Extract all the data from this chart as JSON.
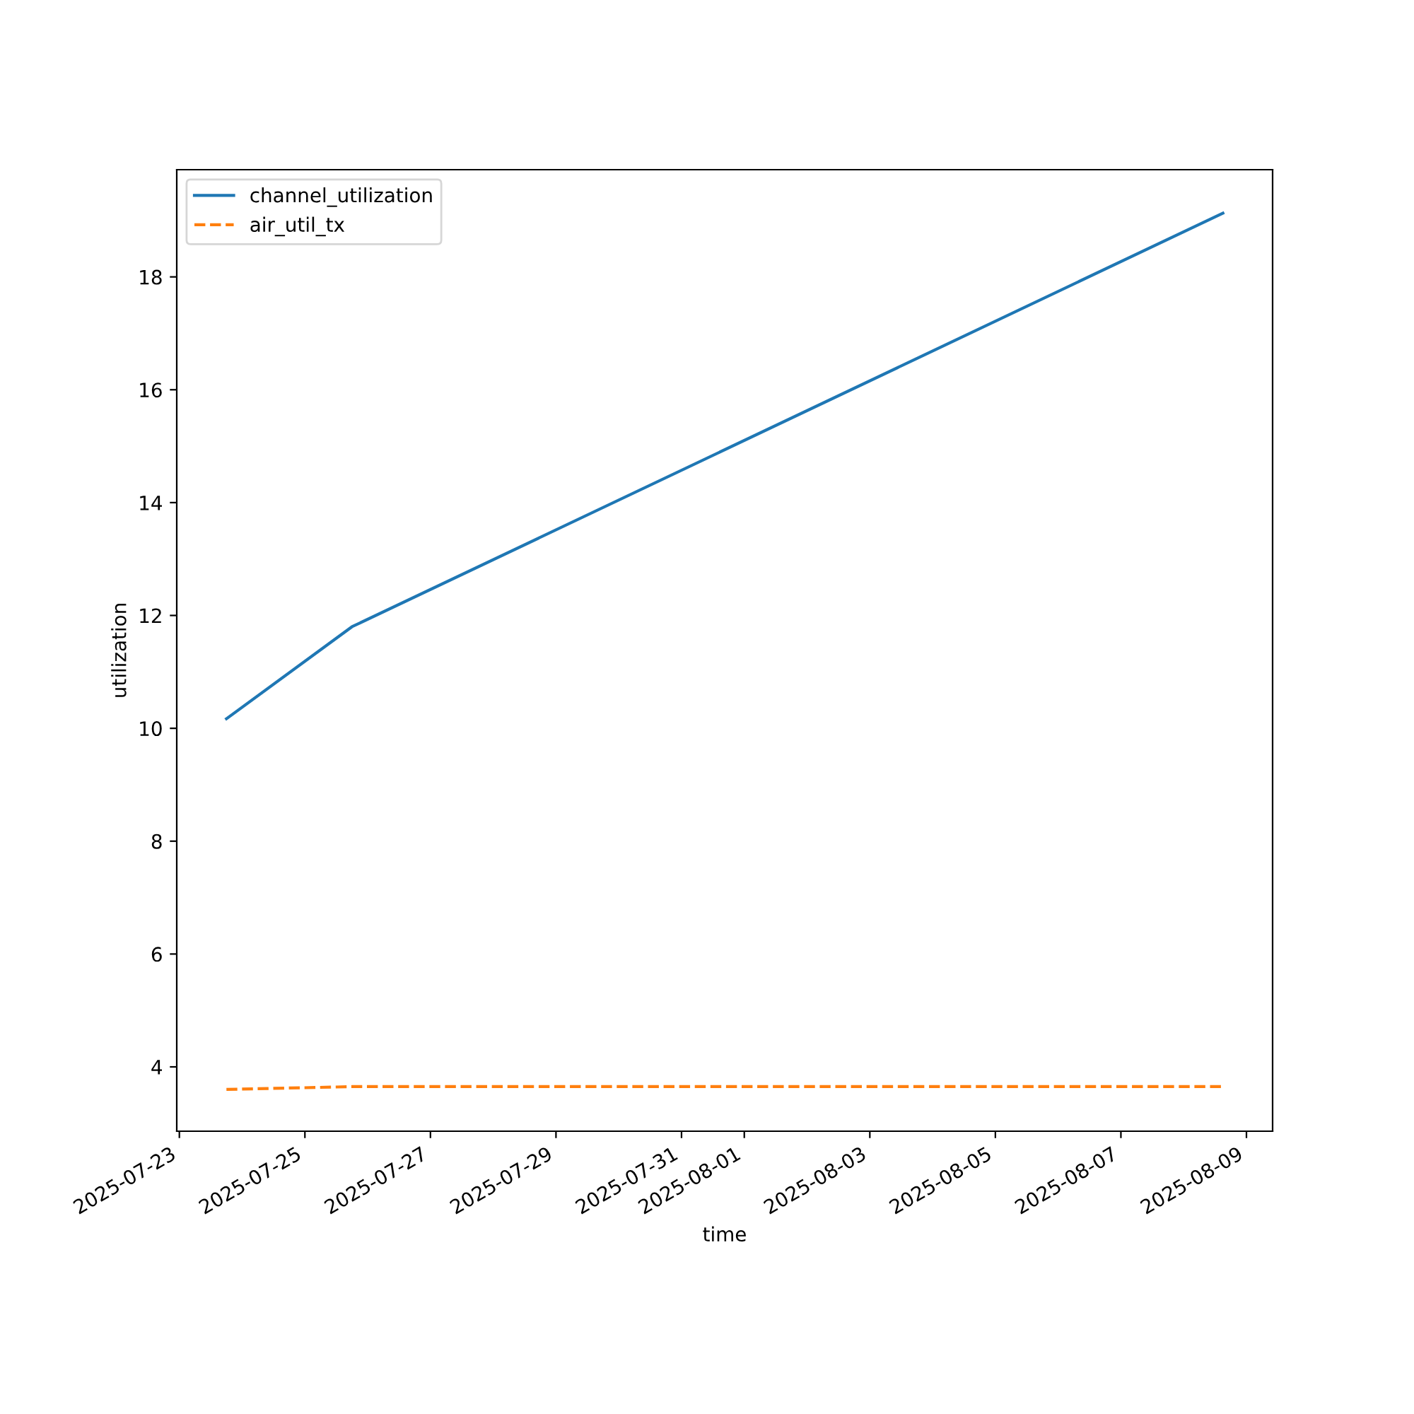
{
  "chart_data": {
    "type": "line",
    "xlabel": "time",
    "ylabel": "utilization",
    "x": [
      "2025-07-23T18:00",
      "2025-07-25T18:00",
      "2025-08-08T15:00"
    ],
    "series": [
      {
        "name": "channel_utilization",
        "color": "#1f77b4",
        "values": [
          10.17,
          11.8,
          19.13
        ],
        "line_style": "solid"
      },
      {
        "name": "air_util_tx",
        "color": "#ff7f0e",
        "values": [
          3.6,
          3.65,
          3.65
        ],
        "line_style": "dashed"
      }
    ],
    "xlim": [
      "2025-07-22T23:00",
      "2025-08-09T10:00"
    ],
    "xticks": [
      "2025-07-23",
      "2025-07-25",
      "2025-07-27",
      "2025-07-29",
      "2025-07-31",
      "2025-08-01",
      "2025-08-03",
      "2025-08-05",
      "2025-08-07",
      "2025-08-09"
    ],
    "ylim": [
      2.86,
      19.9
    ],
    "yticks": [
      4,
      6,
      8,
      10,
      12,
      14,
      16,
      18
    ],
    "legend": "top left",
    "grid": false
  }
}
